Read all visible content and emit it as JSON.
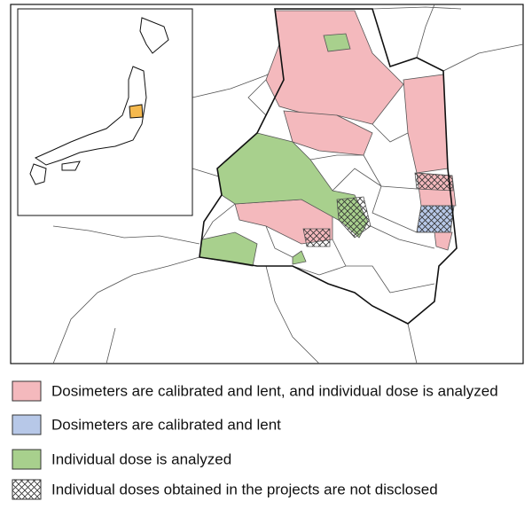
{
  "legend": {
    "items": [
      {
        "label": "Dosimeters are calibrated and lent, and individual dose is analyzed",
        "color": "#f4b9bd"
      },
      {
        "label": "Dosimeters are calibrated and lent",
        "color": "#b7c8e8"
      },
      {
        "label": "Individual dose is analyzed",
        "color": "#a8d08d"
      },
      {
        "label": "Individual doses obtained in the projects are not disclosed",
        "pattern": "crosshatch"
      }
    ]
  }
}
